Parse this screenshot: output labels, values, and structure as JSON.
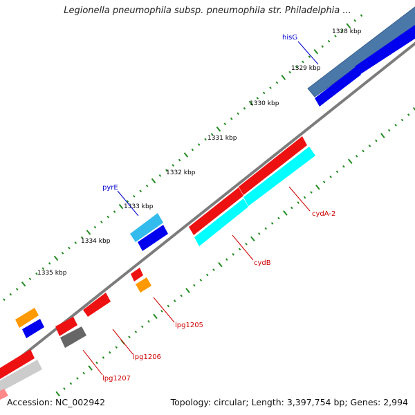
{
  "title": "Legionella pneumophila subsp. pneumophila str. Philadelphia ...",
  "footer": {
    "accession": "Accession: NC_002942",
    "summary": "Topology: circular; Length: 3,397,754 bp; Genes: 2,994"
  },
  "ticks": [
    "1328 kbp",
    "1329 kbp",
    "1330 kbp",
    "1331 kbp",
    "1332 kbp",
    "1333 kbp",
    "1334 kbp",
    "1335 kbp"
  ],
  "genes": [
    {
      "label": "hisG",
      "color": "#0000cc"
    },
    {
      "label": "pyrE",
      "color": "#0000cc"
    },
    {
      "label": "cydA-2",
      "color": "#cc0000"
    },
    {
      "label": "cydB",
      "color": "#cc0000"
    },
    {
      "label": "lpg1205",
      "color": "#cc0000"
    },
    {
      "label": "lpg1206",
      "color": "#cc0000"
    },
    {
      "label": "lpg1207",
      "color": "#cc0000"
    }
  ],
  "colors": {
    "backbone": "#808080",
    "tick": "#228b22",
    "forward_blue_steel": "#4a78a8",
    "forward_red": "#ee1111",
    "reverse_blue": "#0000ee",
    "reverse_cyan": "#00ffff",
    "reverse_orange": "#ff9900",
    "reverse_gray": "#666666",
    "light_blue": "#33bbee",
    "light_gray": "#cccccc"
  }
}
